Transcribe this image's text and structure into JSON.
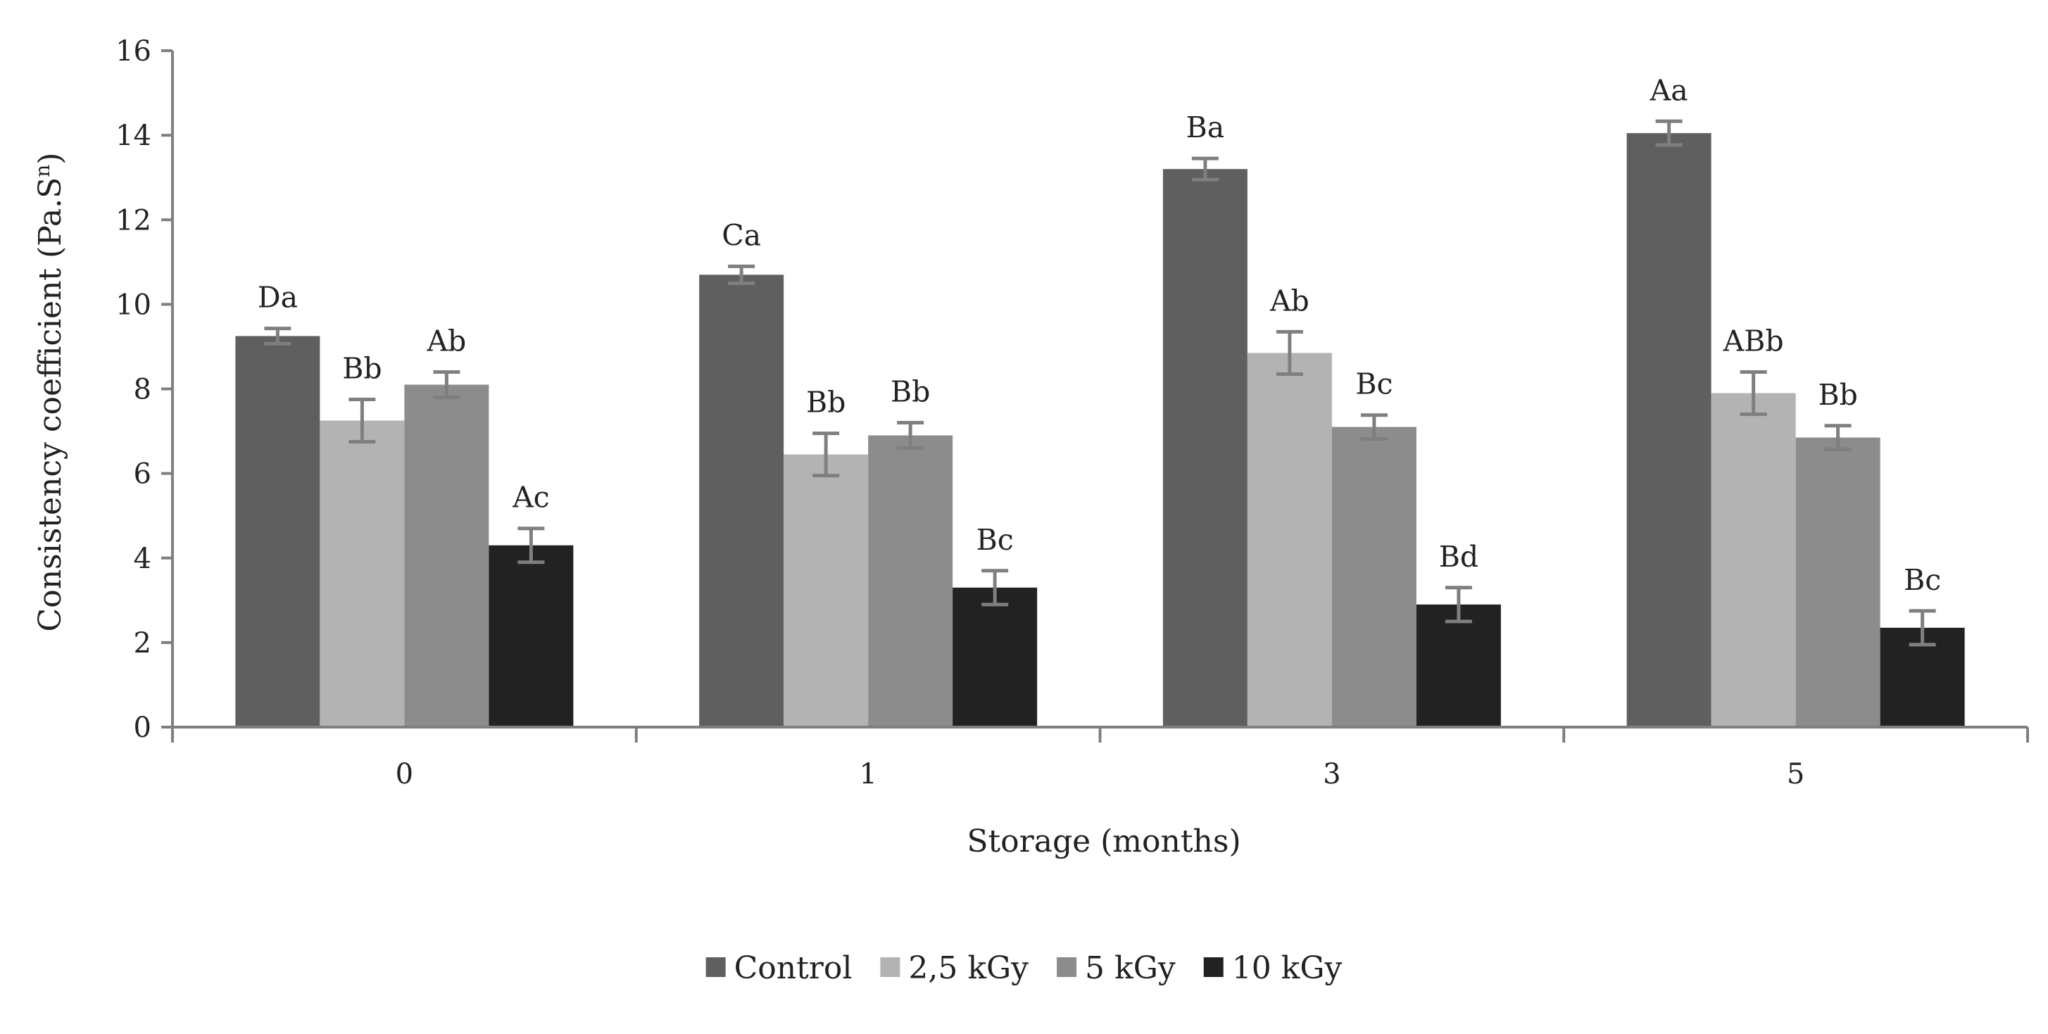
{
  "chart_data": {
    "type": "bar",
    "title": "",
    "xlabel": "Storage (months)",
    "ylabel": "Consistency coefficient (Pa.S",
    "ylabel_superscript": "n",
    "ylabel_suffix": ")",
    "ylim": [
      0,
      16
    ],
    "yticks": [
      "0",
      "2",
      "4",
      "6",
      "8",
      "10",
      "12",
      "14",
      "16"
    ],
    "categories": [
      "0",
      "1",
      "3",
      "5"
    ],
    "legend_position": "bottom-center",
    "series": [
      {
        "name": "Control",
        "color": "#5f5f5f",
        "values": [
          9.25,
          10.7,
          13.2,
          14.05
        ],
        "errors": [
          0.18,
          0.2,
          0.25,
          0.28
        ],
        "labels": [
          "Da",
          "Ca",
          "Ba",
          "Aa"
        ]
      },
      {
        "name": "2,5 kGy",
        "color": "#b3b3b3",
        "values": [
          7.25,
          6.45,
          8.85,
          7.9
        ],
        "errors": [
          0.5,
          0.5,
          0.5,
          0.5
        ],
        "labels": [
          "Bb",
          "Bb",
          "Ab",
          "ABb"
        ]
      },
      {
        "name": "5 kGy",
        "color": "#8c8c8c",
        "values": [
          8.1,
          6.9,
          7.1,
          6.85
        ],
        "errors": [
          0.3,
          0.3,
          0.28,
          0.28
        ],
        "labels": [
          "Ab",
          "Bb",
          "Bc",
          "Bb"
        ]
      },
      {
        "name": "10 kGy",
        "color": "#222222",
        "values": [
          4.3,
          3.3,
          2.9,
          2.35
        ],
        "errors": [
          0.4,
          0.4,
          0.4,
          0.4
        ],
        "labels": [
          "Ac",
          "Bc",
          "Bd",
          "Bc"
        ]
      }
    ],
    "colors": {
      "axis": "#7f7f7f",
      "errorbar": "#7f7f7f",
      "text": "#222222"
    }
  }
}
